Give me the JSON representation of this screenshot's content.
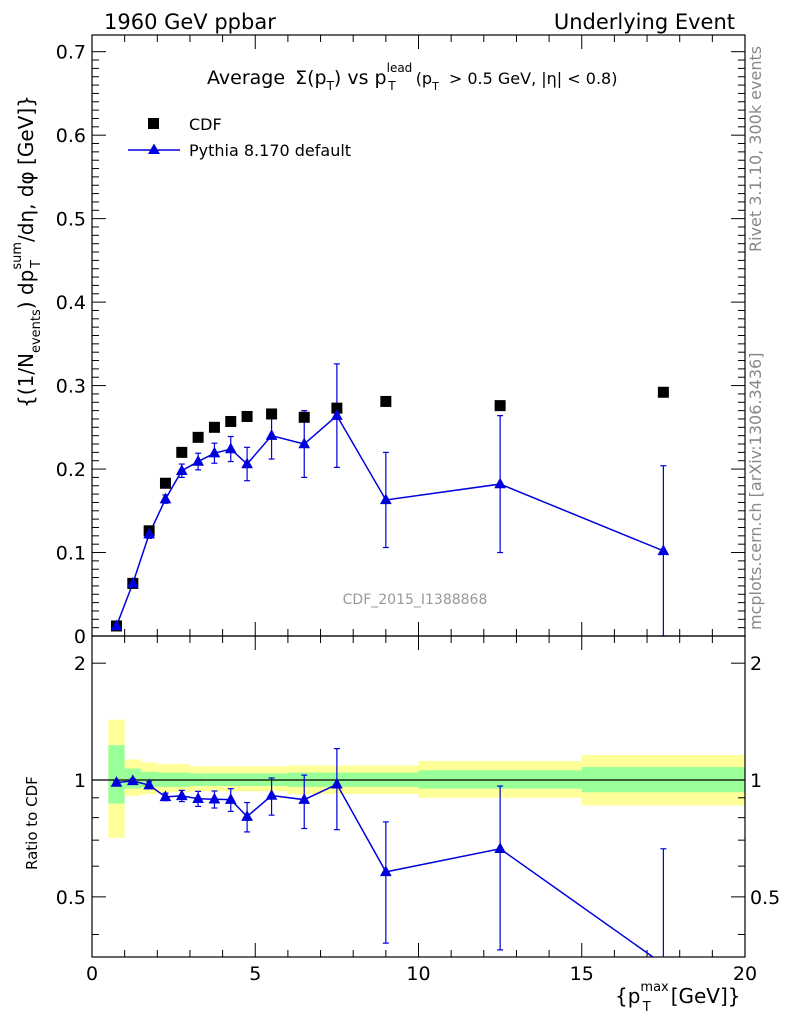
{
  "header": {
    "left": "1960 GeV ppbar",
    "right": "Underlying Event"
  },
  "side": {
    "rivet": "Rivet 3.1.10,  300k events",
    "mcplots": "mcplots.cern.ch [arXiv:1306.3436]"
  },
  "watermark": "CDF_2015_I1388868",
  "chart_data": [
    {
      "type": "scatter",
      "title_parts": {
        "a": "Average",
        "b": "Σ(p",
        "b_sub": "T",
        "c": ") vs p",
        "c_sup": "lead",
        "c_sub": "T",
        "d": "(p",
        "d_sub": "T",
        "e": "> 0.5 GeV, |η| < 0.8)"
      },
      "ylabel_parts": {
        "a": "{(1/N",
        "a_sub": "events",
        "b": ") dp",
        "b_sup": "sum",
        "b_sub": "T",
        "c": "/dη, dφ [GeV]}"
      },
      "xlim": [
        0,
        20
      ],
      "ylim": [
        0,
        0.72
      ],
      "yticks": [
        "0",
        "0.1",
        "0.2",
        "0.3",
        "0.4",
        "0.5",
        "0.6",
        "0.7"
      ],
      "legend": {
        "placement": "top-left",
        "entries": [
          "CDF",
          "Pythia 8.170 default"
        ]
      },
      "series": [
        {
          "name": "CDF",
          "color": "#000000",
          "marker": "square",
          "x": [
            0.75,
            1.25,
            1.75,
            2.25,
            2.75,
            3.25,
            3.75,
            4.25,
            4.75,
            5.5,
            6.5,
            7.5,
            9.0,
            12.5,
            17.5
          ],
          "y": [
            0.012,
            0.063,
            0.126,
            0.183,
            0.22,
            0.238,
            0.25,
            0.257,
            0.263,
            0.266,
            0.262,
            0.273,
            0.281,
            0.276,
            0.292
          ]
        },
        {
          "name": "Pythia 8.170 default",
          "color": "#0000dd",
          "marker": "triangle",
          "x": [
            0.75,
            1.25,
            1.75,
            2.25,
            2.75,
            3.25,
            3.75,
            4.25,
            4.75,
            5.5,
            6.5,
            7.5,
            9.0,
            12.5,
            17.5
          ],
          "y": [
            0.012,
            0.063,
            0.122,
            0.164,
            0.198,
            0.209,
            0.219,
            0.224,
            0.206,
            0.24,
            0.23,
            0.264,
            0.163,
            0.182,
            0.102
          ],
          "err": [
            0.002,
            0.003,
            0.005,
            0.005,
            0.008,
            0.01,
            0.012,
            0.015,
            0.02,
            0.028,
            0.04,
            0.062,
            0.057,
            0.082,
            0.102
          ]
        }
      ]
    },
    {
      "type": "scatter",
      "ylabel": "Ratio to CDF",
      "xlabel_parts": {
        "a": "{p",
        "a_sup": "max",
        "a_sub": "T",
        "b": "[GeV]}"
      },
      "xlim": [
        0,
        20
      ],
      "ylim": [
        0.35,
        2.35
      ],
      "log_y": true,
      "xticks": [
        "0",
        "5",
        "10",
        "15",
        "20"
      ],
      "yticks": [
        "0.5",
        "1",
        "2"
      ],
      "bands": {
        "green_color": "#99ff99",
        "yellow_color": "#ffff99",
        "bins": [
          {
            "x0": 0.5,
            "x1": 1.0,
            "g": [
              0.87,
              1.23
            ],
            "y": [
              0.71,
              1.43
            ]
          },
          {
            "x0": 1.0,
            "x1": 1.5,
            "g": [
              0.95,
              1.07
            ],
            "y": [
              0.91,
              1.13
            ]
          },
          {
            "x0": 1.5,
            "x1": 2.0,
            "g": [
              0.96,
              1.05
            ],
            "y": [
              0.92,
              1.11
            ]
          },
          {
            "x0": 2.0,
            "x1": 3.0,
            "g": [
              0.96,
              1.045
            ],
            "y": [
              0.93,
              1.1
            ]
          },
          {
            "x0": 3.0,
            "x1": 3.5,
            "g": [
              0.965,
              1.04
            ],
            "y": [
              0.935,
              1.085
            ]
          },
          {
            "x0": 3.5,
            "x1": 6.0,
            "g": [
              0.965,
              1.04
            ],
            "y": [
              0.935,
              1.085
            ]
          },
          {
            "x0": 6.0,
            "x1": 10.0,
            "g": [
              0.96,
              1.045
            ],
            "y": [
              0.92,
              1.09
            ]
          },
          {
            "x0": 10.0,
            "x1": 15.0,
            "g": [
              0.95,
              1.06
            ],
            "y": [
              0.9,
              1.12
            ]
          },
          {
            "x0": 15.0,
            "x1": 20.0,
            "g": [
              0.93,
              1.08
            ],
            "y": [
              0.86,
              1.16
            ]
          }
        ]
      },
      "series": [
        {
          "name": "Pythia 8.170 default",
          "color": "#0000dd",
          "marker": "triangle",
          "x": [
            0.75,
            1.25,
            1.75,
            2.25,
            2.75,
            3.25,
            3.75,
            4.25,
            4.75,
            5.5,
            6.5,
            7.5,
            9.0,
            12.5,
            17.5
          ],
          "y": [
            0.985,
            0.995,
            0.97,
            0.905,
            0.91,
            0.895,
            0.892,
            0.89,
            0.805,
            0.912,
            0.89,
            0.975,
            0.58,
            0.665,
            0.335
          ],
          "err": [
            0.01,
            0.012,
            0.02,
            0.02,
            0.03,
            0.04,
            0.045,
            0.06,
            0.07,
            0.1,
            0.14,
            0.23,
            0.2,
            0.3,
            0.33
          ]
        }
      ]
    }
  ]
}
